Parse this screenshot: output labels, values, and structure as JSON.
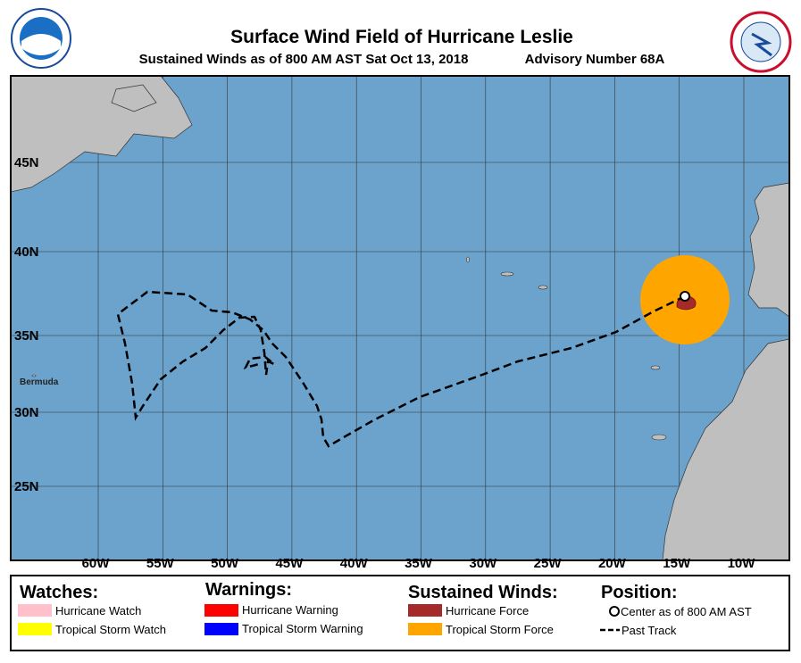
{
  "header": {
    "title": "Surface Wind Field of Hurricane Leslie",
    "subtitle": "Sustained Winds as of 800 AM AST Sat Oct 13, 2018",
    "advisory": "Advisory Number 68A"
  },
  "map": {
    "longitude_labels": [
      "60W",
      "55W",
      "50W",
      "45W",
      "40W",
      "35W",
      "30W",
      "25W",
      "20W",
      "15W",
      "10W"
    ],
    "latitude_labels": [
      "45N",
      "40N",
      "35N",
      "30N",
      "25N"
    ],
    "place_labels": [
      "Bermuda"
    ]
  },
  "legend": {
    "watches": {
      "title": "Watches:",
      "items": [
        "Hurricane Watch",
        "Tropical Storm Watch"
      ]
    },
    "warnings": {
      "title": "Warnings:",
      "items": [
        "Hurricane Warning",
        "Tropical Storm Warning"
      ]
    },
    "winds": {
      "title": "Sustained Winds:",
      "items": [
        "Hurricane Force",
        "Tropical Storm Force"
      ]
    },
    "position": {
      "title": "Position:",
      "items": [
        "Center as of 800 AM AST",
        "Past Track"
      ]
    }
  }
}
